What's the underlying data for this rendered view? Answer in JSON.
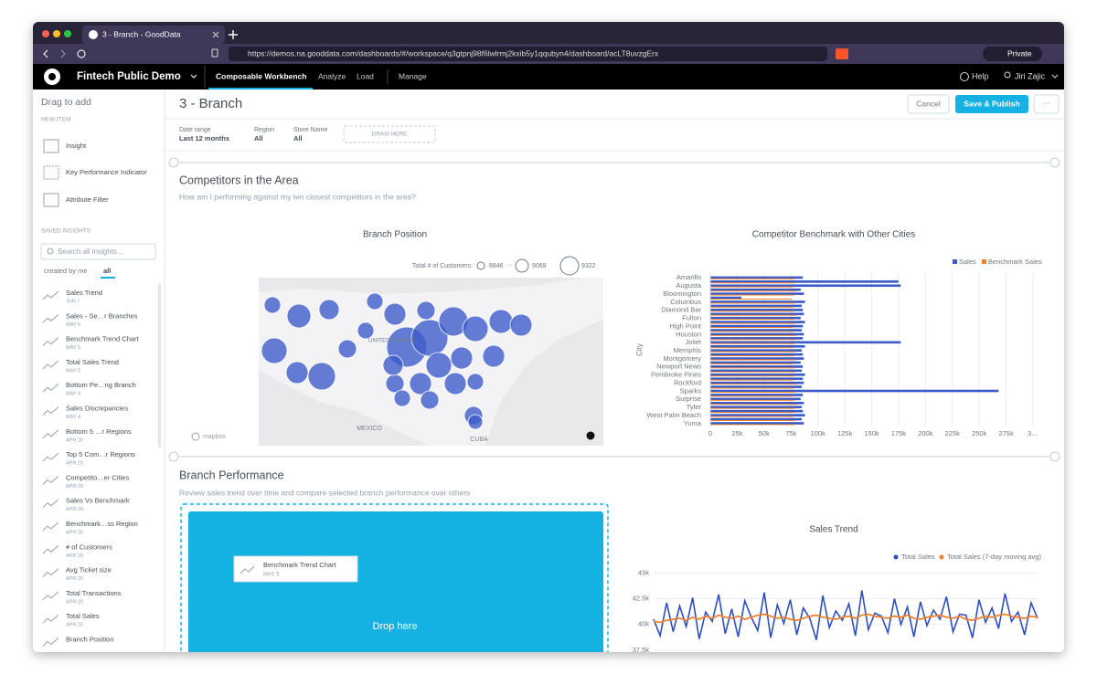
{
  "browser": {
    "tab_title": "3 - Branch - GoodData",
    "url": "https://demos.na.gooddata.com/dashboards/#/workspace/q3gtpnj98f6lwlrmj2kxib5y1qqubyn4/dashboard/acLT8uvzgErx",
    "private": "Private"
  },
  "app": {
    "workspace": "Fintech Public Demo",
    "nav": [
      "Composable Workbench",
      "Analyze",
      "Load",
      "Manage"
    ],
    "help": "Help",
    "user": "Jiri Zajic"
  },
  "sidebar": {
    "title": "Drag to add",
    "new_item": "NEW ITEM",
    "new_items": [
      "Insight",
      "Key Performance Indicator",
      "Attribute Filter"
    ],
    "saved": "SAVED INSIGHTS",
    "search": "Search all insights...",
    "filters": [
      "created by me",
      "all"
    ],
    "insights": [
      {
        "name": "Sales Trend",
        "date": "JUN 7"
      },
      {
        "name": "Sales - Se…r Branches",
        "date": "MAY 5"
      },
      {
        "name": "Benchmark Trend Chart",
        "date": "MAY 5"
      },
      {
        "name": "Total Sales Trend",
        "date": "MAY 5"
      },
      {
        "name": "Bottom Pe…ng Branch",
        "date": "MAY 4"
      },
      {
        "name": "Sales Discrepancies",
        "date": "MAY 4"
      },
      {
        "name": "Bottom 5 …r Regions",
        "date": "APR 20"
      },
      {
        "name": "Top 5 Com…r Regions",
        "date": "APR 20"
      },
      {
        "name": "Competito…er Cities",
        "date": "APR 20"
      },
      {
        "name": "Sales Vs Benchmark",
        "date": "APR 20"
      },
      {
        "name": "Benchmark…ss Region",
        "date": "APR 20"
      },
      {
        "name": "# of Customers",
        "date": "APR 20"
      },
      {
        "name": "Avg Ticket size",
        "date": "APR 20"
      },
      {
        "name": "Total Transactions",
        "date": "APR 20"
      },
      {
        "name": "Total Sales",
        "date": "APR 20"
      },
      {
        "name": "Branch Position"
      }
    ]
  },
  "dashboard": {
    "title": "3 - Branch",
    "buttons": [
      "Cancel",
      "Save & Publish",
      "···"
    ],
    "filters": [
      {
        "label": "Date range",
        "value": "Last 12 months"
      },
      {
        "label": "Region",
        "value": "All"
      },
      {
        "label": "Store Name",
        "value": "All"
      }
    ],
    "drag_here": "DRAG HERE",
    "sections": [
      {
        "title": "Competitors in the Area",
        "description": "How am I performing against my ten closest competitors in the area?"
      },
      {
        "title": "Branch Performance",
        "description": "Review sales trend over time and compare selected branch performance over others"
      }
    ],
    "drop": {
      "card_title": "Benchmark Trend Chart",
      "card_date": "MAY 5",
      "text": "Drop here"
    }
  },
  "map": {
    "title": "Branch Position",
    "legend_title": "Total # of Customers:",
    "legend_sizes": [
      8846,
      9069,
      9322
    ],
    "legend_separator": "···",
    "labels": [
      "UNITED STATES",
      "MEXICO",
      "CUBA"
    ],
    "attribution": "mapbox"
  },
  "chart_data": [
    {
      "type": "barh",
      "title": "Competitor Benchmark with Other Cities",
      "y_label": "City",
      "categories": [
        "Amarillo",
        null,
        "Augusta",
        null,
        "Bloomington",
        null,
        "Columbus",
        null,
        "Diamond Bar",
        null,
        "Fulton",
        null,
        "High Point",
        null,
        "Houston",
        null,
        "Joliet",
        null,
        "Memphis",
        null,
        "Montgomery",
        null,
        "Newport News",
        null,
        "Pembroke Pines",
        null,
        "Rockford",
        null,
        "Sparks",
        null,
        "Surprise",
        null,
        "Tyler",
        null,
        "West Palm Beach",
        null,
        "Yuma"
      ],
      "series": [
        {
          "name": "Sales",
          "color": "#3a5bc7",
          "values": [
            86000,
            175000,
            177000,
            84000,
            87000,
            29000,
            88000,
            85000,
            86000,
            87000,
            84000,
            88000,
            86000,
            85000,
            87000,
            86000,
            177000,
            88000,
            85000,
            86000,
            87000,
            84000,
            86000,
            85000,
            88000,
            86000,
            87000,
            85000,
            268000,
            86000,
            84000,
            87000,
            85000,
            86000,
            88000,
            85000,
            87000
          ]
        },
        {
          "name": "Benchmark Sales",
          "color": "#f0822d",
          "values": [
            78000,
            79000,
            77000,
            80000,
            78000,
            76000,
            79000,
            78000,
            77000,
            80000,
            78000,
            79000,
            77000,
            78000,
            80000,
            79000,
            78000,
            77000,
            79000,
            78000,
            80000,
            77000,
            78000,
            79000,
            78000,
            77000,
            80000,
            78000,
            79000,
            77000,
            78000,
            80000,
            79000,
            78000,
            77000,
            79000,
            78000
          ]
        }
      ],
      "xlim": [
        0,
        300000
      ],
      "xticks": [
        0,
        {
          "value": 25000,
          "label": "25k"
        },
        {
          "value": 50000,
          "label": "50k"
        },
        {
          "value": 75000,
          "label": "75k"
        },
        {
          "value": 100000,
          "label": "100k"
        },
        {
          "value": 125000,
          "label": "125k"
        },
        {
          "value": 150000,
          "label": "150k"
        },
        {
          "value": 175000,
          "label": "175k"
        },
        {
          "value": 200000,
          "label": "200k"
        },
        {
          "value": 225000,
          "label": "225k"
        },
        {
          "value": 250000,
          "label": "250k"
        },
        {
          "value": 275000,
          "label": "275k"
        },
        {
          "value": 300000,
          "label": "3…"
        }
      ],
      "grid": true,
      "legend": "top-right"
    },
    {
      "type": "line",
      "title": "Sales Trend",
      "series": [
        {
          "name": "Total Sales",
          "color": "#2f4fc0",
          "values": [
            40500,
            38900,
            42100,
            39300,
            41800,
            39800,
            42600,
            38600,
            41200,
            40300,
            42900,
            39100,
            41500,
            38800,
            42300,
            40700,
            39400,
            43100,
            38700,
            41900,
            40100,
            42400,
            39000,
            41600,
            40600,
            38500,
            42800,
            39700,
            41300,
            40400,
            42000,
            38900,
            43300,
            39500,
            41100,
            40800,
            39200,
            42500,
            40000,
            41700,
            38800,
            42200,
            39900,
            41400,
            40500,
            42700,
            39300,
            41000,
            40900,
            38700,
            42400,
            40200,
            41600,
            39600,
            43000,
            40300,
            41200,
            39000,
            42100,
            40600
          ]
        },
        {
          "name": "Total Sales (7-day moving avg)",
          "color": "#f0822d",
          "values": [
            40300,
            40200,
            40400,
            40500,
            40600,
            40400,
            40700,
            40500,
            40800,
            40600,
            40900,
            40700,
            40600,
            40800,
            40500,
            40700,
            40900,
            41000,
            40800,
            40600,
            40700,
            40500,
            40400,
            40600,
            40800,
            40900,
            40700,
            40600,
            40500,
            40700,
            40800,
            40600,
            40900,
            41000,
            40800,
            40700,
            40600,
            40800,
            40700,
            40900,
            40600,
            40500,
            40700,
            40800,
            40900,
            40700,
            40600,
            40800,
            40500,
            40400,
            40600,
            40800,
            40700,
            40900,
            41000,
            40800,
            40700,
            40600,
            40800,
            40700
          ]
        }
      ],
      "ylim": [
        37500,
        46000
      ],
      "yticks": [
        {
          "value": 37500,
          "label": "37.5k"
        },
        {
          "value": 40000,
          "label": "40k"
        },
        {
          "value": 42500,
          "label": "42.5k"
        },
        {
          "value": 45000,
          "label": "45k"
        }
      ],
      "grid": true,
      "legend": "top-right"
    }
  ]
}
